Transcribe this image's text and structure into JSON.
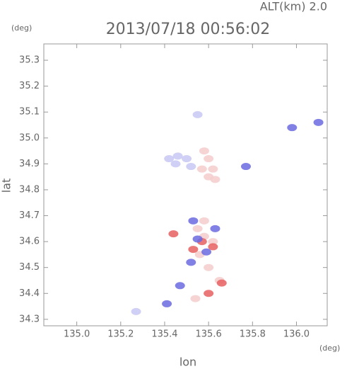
{
  "chart_data": {
    "type": "scatter",
    "title": "2013/07/18 00:56:02",
    "subtitle": "ALT(km) 2.0",
    "ylabel": "lat",
    "xlabel": "lon",
    "yunit": "(deg)",
    "xunit": "(deg)",
    "xlim": [
      134.85,
      136.14
    ],
    "ylim": [
      34.275,
      35.363
    ],
    "xticks": [
      {
        "value": 135,
        "label": "135.0"
      },
      135.2,
      135.4,
      135.6,
      135.8,
      {
        "value": 136,
        "label": "136.0"
      }
    ],
    "yticks": [
      34.3,
      34.4,
      34.5,
      34.6,
      34.7,
      34.8,
      34.9,
      {
        "value": 35,
        "label": "35.0"
      },
      35.1,
      35.2,
      35.3
    ],
    "series": [
      {
        "color": "#c8c8f5",
        "x": [
          135.42,
          135.46,
          135.5,
          135.45,
          135.52,
          135.27,
          135.55
        ],
        "y": [
          34.92,
          34.93,
          34.92,
          34.9,
          34.89,
          34.33,
          35.09
        ]
      },
      {
        "color": "#f5cccc",
        "x": [
          135.58,
          135.6,
          135.62,
          135.57,
          135.6,
          135.63,
          135.55,
          135.58,
          135.56,
          135.6,
          135.65,
          135.54,
          135.58,
          135.62
        ],
        "y": [
          34.95,
          34.92,
          34.88,
          34.88,
          34.85,
          34.84,
          34.65,
          34.62,
          34.55,
          34.5,
          34.45,
          34.38,
          34.68,
          34.6
        ]
      },
      {
        "color": "#e86060",
        "x": [
          135.57,
          135.62,
          135.53,
          135.66,
          135.6,
          135.44
        ],
        "y": [
          34.6,
          34.58,
          34.57,
          34.44,
          34.4,
          34.63
        ]
      },
      {
        "color": "#6a6ae0",
        "x": [
          135.53,
          135.55,
          135.52,
          135.59,
          135.63,
          135.47,
          135.41,
          135.77,
          135.98,
          136.1
        ],
        "y": [
          34.68,
          34.61,
          34.52,
          34.56,
          34.65,
          34.43,
          34.36,
          34.89,
          35.04,
          35.06
        ]
      }
    ]
  }
}
